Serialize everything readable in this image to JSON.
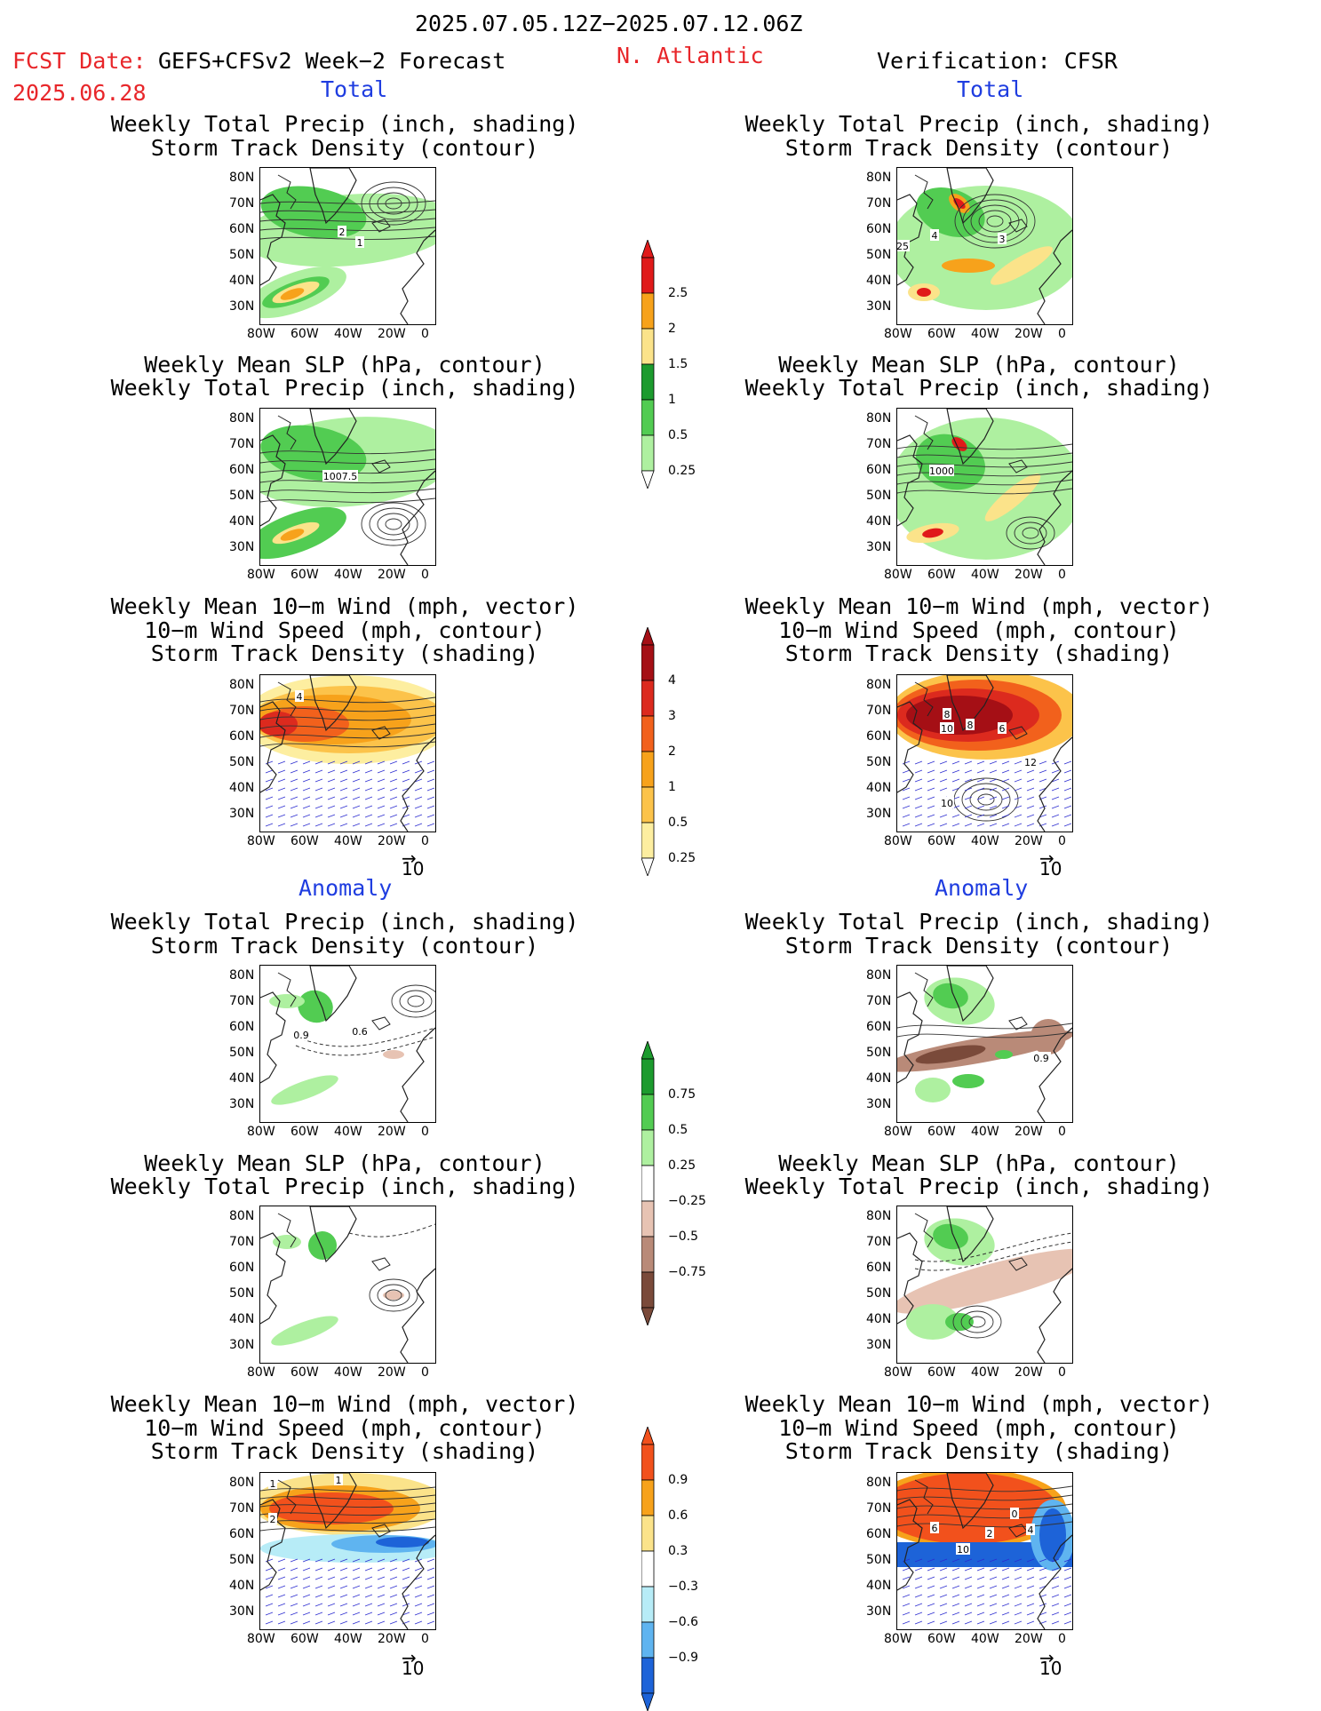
{
  "header": {
    "date_range": "2025.07.05.12Z−2025.07.12.06Z",
    "fcst_date_label": "FCST Date:",
    "fcst_date": "2025.06.28",
    "model": "GEFS+CFSv2 Week−2 Forecast",
    "region": "N. Atlantic",
    "verification": "Verification: CFSR"
  },
  "sections": {
    "total": "Total",
    "anomaly": "Anomaly"
  },
  "panel_titles": {
    "precip_storm": [
      "Weekly Total Precip (inch, shading)",
      "Storm Track Density (contour)"
    ],
    "slp_precip": [
      "Weekly Mean SLP (hPa, contour)",
      "Weekly Total Precip (inch, shading)"
    ],
    "wind_storm": [
      "Weekly Mean 10−m Wind (mph, vector)",
      "10−m Wind Speed (mph, contour)",
      "Storm Track Density (shading)"
    ]
  },
  "axes": {
    "lat_ticks": [
      "80N",
      "70N",
      "60N",
      "50N",
      "40N",
      "30N"
    ],
    "lon_ticks": [
      "80W",
      "60W",
      "40W",
      "20W",
      "0"
    ]
  },
  "vector_ref": "10",
  "contour_labels": {
    "fc_total_1": [
      "2",
      "1"
    ],
    "vf_total_1": [
      "4",
      "3",
      "25"
    ],
    "fc_total_2": [
      "1007.5"
    ],
    "vf_total_2": [
      "1000"
    ],
    "fc_total_3": [
      "4"
    ],
    "vf_total_3": [
      "8",
      "10",
      "8",
      "6",
      "12",
      "10"
    ],
    "fc_anom_1": [
      "0.9",
      "0.6"
    ],
    "vf_anom_1": [
      "0.9"
    ],
    "fc_anom_3": [
      "1",
      "1",
      "2"
    ],
    "vf_anom_3": [
      "6",
      "2",
      "0",
      "4",
      "10"
    ]
  },
  "colorbars": {
    "precip_total": {
      "labels": [
        "2.5",
        "2",
        "1.5",
        "1",
        "0.5",
        "0.25"
      ],
      "colors": [
        "#e01a1a",
        "#f7a21b",
        "#fbe38a",
        "#1c9b2e",
        "#52cc52",
        "#aef0a0"
      ]
    },
    "storm_total": {
      "labels": [
        "4",
        "3",
        "2",
        "1",
        "0.5",
        "0.25"
      ],
      "colors": [
        "#a50f15",
        "#dc2a1e",
        "#f2611c",
        "#f7a21b",
        "#fcc34a",
        "#fdeea0"
      ]
    },
    "precip_anom": {
      "labels": [
        "0.75",
        "0.5",
        "0.25",
        "−0.25",
        "−0.5",
        "−0.75"
      ],
      "colors": [
        "#1c9b2e",
        "#52cc52",
        "#aef0a0",
        "#ffffff",
        "#e7c3b3",
        "#b98a78",
        "#7a4a3a"
      ]
    },
    "storm_anom": {
      "labels": [
        "0.9",
        "0.6",
        "0.3",
        "−0.3",
        "−0.6",
        "−0.9"
      ],
      "colors": [
        "#f2511c",
        "#f7a21b",
        "#fbe38a",
        "#ffffff",
        "#b7ecf7",
        "#5fb4f0",
        "#1d63d8"
      ]
    }
  }
}
